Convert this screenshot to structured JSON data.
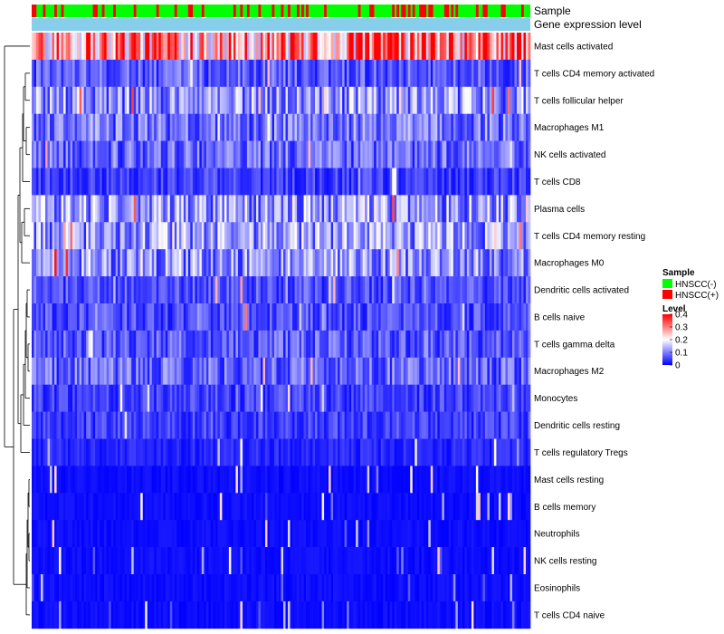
{
  "chart_data": {
    "type": "heatmap",
    "title": "",
    "annotation_tracks": [
      "Sample",
      "Gene expression level"
    ],
    "rows": [
      "Mast cells activated",
      "T cells CD4 memory activated",
      "T cells follicular helper",
      "Macrophages M1",
      "NK cells activated",
      "T cells CD8",
      "Plasma cells",
      "T cells CD4 memory resting",
      "Macrophages M0",
      "Dendritic cells activated",
      "B cells naive",
      "T cells gamma delta",
      "Macrophages M2",
      "Monocytes",
      "Dendritic cells resting",
      "T cells regulatory  Tregs",
      "Mast cells resting",
      "B cells memory",
      "Neutrophils",
      "NK cells resting",
      "Eosinophils",
      "T cells CD4 naive"
    ],
    "row_mean_level": [
      0.3,
      0.07,
      0.11,
      0.09,
      0.08,
      0.05,
      0.12,
      0.12,
      0.11,
      0.06,
      0.06,
      0.07,
      0.08,
      0.05,
      0.05,
      0.03,
      0.01,
      0.01,
      0.01,
      0.01,
      0.005,
      0.01
    ],
    "n_samples": 220,
    "sample_groups": [
      "HNSCC(-)",
      "HNSCC(+)"
    ],
    "sample_fraction_positive": 0.25,
    "color_scale": {
      "min": 0,
      "max": 0.4,
      "low": "#0000ff",
      "mid": "#ffffff",
      "high": "#ff0000"
    },
    "legend": {
      "sample_title": "Sample",
      "sample_items": [
        {
          "label": "HNSCC(-)",
          "color": "#00ff00"
        },
        {
          "label": "HNSCC(+)",
          "color": "#ff0000"
        }
      ],
      "level_title": "Level",
      "level_ticks": [
        "0.4",
        "0.3",
        "0.2",
        "0.1",
        "0"
      ],
      "level_tick_values": [
        0.4,
        0.3,
        0.2,
        0.1,
        0
      ]
    },
    "colors": {
      "gene_expression_bar": "#87ceeb",
      "dendrogram": "#000000"
    }
  }
}
